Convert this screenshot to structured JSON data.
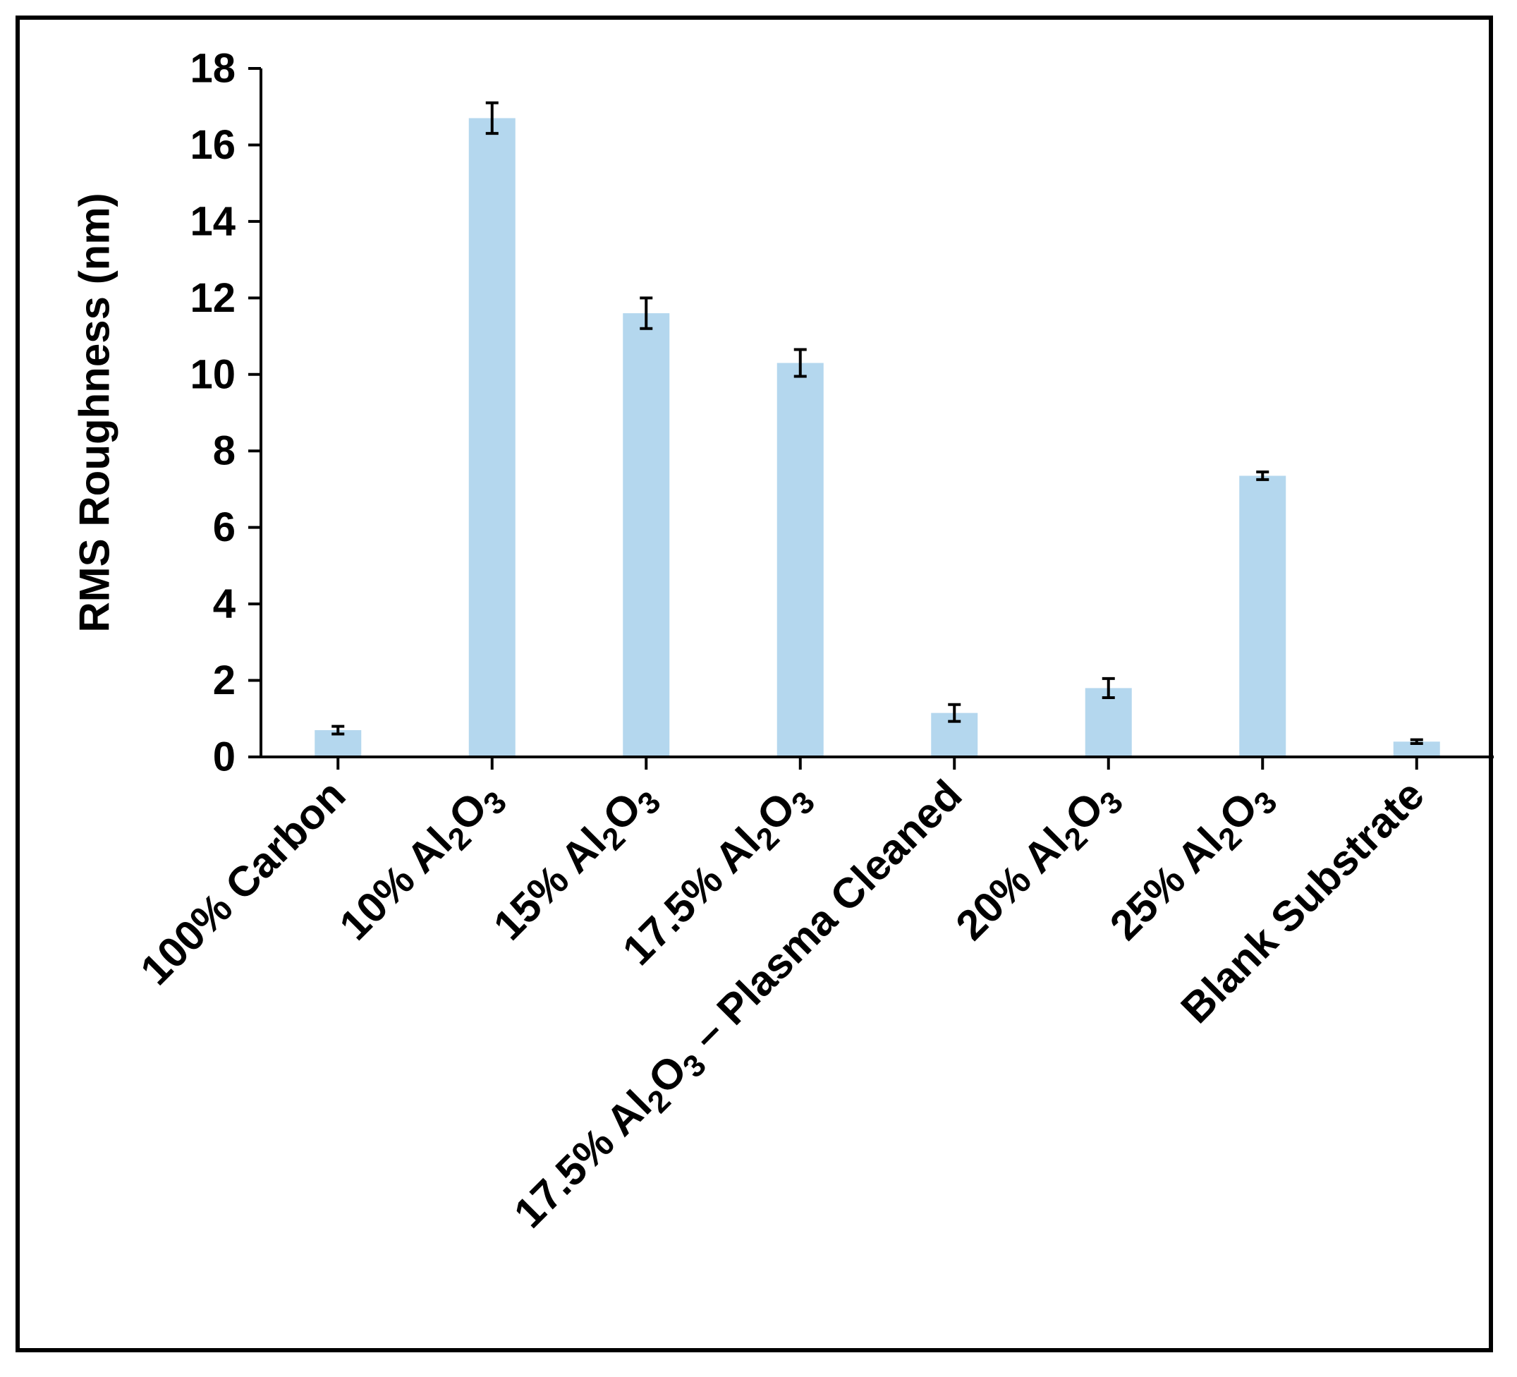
{
  "chart_data": {
    "type": "bar",
    "categories": [
      {
        "label": "100% Carbon",
        "parts": [
          {
            "t": "100% Carbon"
          }
        ]
      },
      {
        "label": "10% Al2O3",
        "parts": [
          {
            "t": "10% Al"
          },
          {
            "t": "2",
            "sub": true
          },
          {
            "t": "O"
          },
          {
            "t": "3",
            "sub": true
          }
        ]
      },
      {
        "label": "15% Al2O3",
        "parts": [
          {
            "t": "15% Al"
          },
          {
            "t": "2",
            "sub": true
          },
          {
            "t": "O"
          },
          {
            "t": "3",
            "sub": true
          }
        ]
      },
      {
        "label": "17.5% Al2O3",
        "parts": [
          {
            "t": "17.5% Al"
          },
          {
            "t": "2",
            "sub": true
          },
          {
            "t": "O"
          },
          {
            "t": "3",
            "sub": true
          }
        ]
      },
      {
        "label": "17.5% Al2O3 – Plasma Cleaned",
        "parts": [
          {
            "t": "17.5% Al"
          },
          {
            "t": "2",
            "sub": true
          },
          {
            "t": "O"
          },
          {
            "t": "3",
            "sub": true
          },
          {
            "t": " – Plasma Cleaned"
          }
        ]
      },
      {
        "label": "20% Al2O3",
        "parts": [
          {
            "t": "20% Al"
          },
          {
            "t": "2",
            "sub": true
          },
          {
            "t": "O"
          },
          {
            "t": "3",
            "sub": true
          }
        ]
      },
      {
        "label": "25% Al2O3",
        "parts": [
          {
            "t": "25% Al"
          },
          {
            "t": "2",
            "sub": true
          },
          {
            "t": "O"
          },
          {
            "t": "3",
            "sub": true
          }
        ]
      },
      {
        "label": "Blank Substrate",
        "parts": [
          {
            "t": "Blank Substrate"
          }
        ]
      }
    ],
    "values": [
      0.7,
      16.7,
      11.6,
      10.3,
      1.15,
      1.8,
      7.35,
      0.4
    ],
    "errors": [
      0.1,
      0.4,
      0.4,
      0.35,
      0.22,
      0.25,
      0.1,
      0.05
    ],
    "title": "",
    "xlabel": "",
    "ylabel": "RMS Roughness (nm)",
    "ylim": [
      0,
      18
    ],
    "yticks": [
      0,
      2,
      4,
      6,
      8,
      10,
      12,
      14,
      16,
      18
    ],
    "grid": false,
    "legend": "none",
    "bar_color": "#b4d7ee",
    "axis_color": "#000000"
  }
}
